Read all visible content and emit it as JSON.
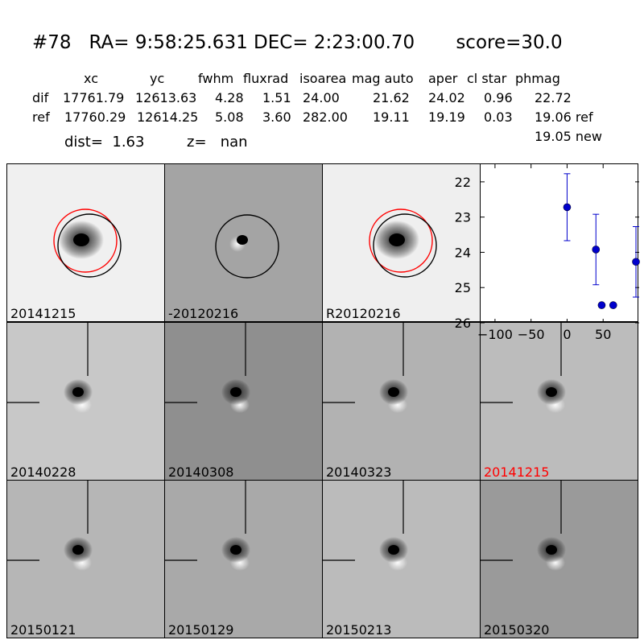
{
  "header": {
    "title": "#78   RA= 9:58:25.631 DEC= 2:23:00.70       score=30.0",
    "columns": [
      "xc",
      "yc",
      "fwhm",
      "fluxrad",
      "isoarea",
      "mag auto",
      "aper",
      "cl star",
      "phmag"
    ],
    "rows": [
      {
        "name": "dif",
        "values": [
          "17761.79",
          "12613.63",
          "4.28",
          "1.51",
          "24.00",
          "21.62",
          "24.02",
          "0.96",
          "22.72"
        ]
      },
      {
        "name": "ref",
        "values": [
          "17760.29",
          "12614.25",
          "5.08",
          "3.60",
          "282.00",
          "19.11",
          "19.19",
          "0.03",
          "19.06 ref"
        ]
      }
    ],
    "new_mag": "19.05 new",
    "dist": "dist=  1.63",
    "z": "z=   nan"
  },
  "tiles": [
    {
      "label": "20141215",
      "label_color": "#000000",
      "bg": "#f0f0f0",
      "style": "new"
    },
    {
      "label": "-20120216",
      "label_color": "#000000",
      "bg": "#a4a4a4",
      "style": "diff"
    },
    {
      "label": "R20120216",
      "label_color": "#000000",
      "bg": "#efefef",
      "style": "ref"
    },
    {
      "label": "20140228",
      "label_color": "#000000",
      "bg": "#c8c8c8",
      "style": "stamp"
    },
    {
      "label": "20140308",
      "label_color": "#000000",
      "bg": "#8f8f8f",
      "style": "stamp"
    },
    {
      "label": "20140323",
      "label_color": "#000000",
      "bg": "#b2b2b2",
      "style": "stamp"
    },
    {
      "label": "20141215",
      "label_color": "#ff0000",
      "bg": "#bcbcbc",
      "style": "stamp"
    },
    {
      "label": "20150121",
      "label_color": "#000000",
      "bg": "#b6b6b6",
      "style": "stamp"
    },
    {
      "label": "20150129",
      "label_color": "#000000",
      "bg": "#a9a9a9",
      "style": "stamp"
    },
    {
      "label": "20150213",
      "label_color": "#000000",
      "bg": "#bbbbbb",
      "style": "stamp"
    },
    {
      "label": "20150320",
      "label_color": "#000000",
      "bg": "#9a9a9a",
      "style": "stamp"
    }
  ],
  "chart_data": {
    "type": "scatter",
    "xlim": [
      -120,
      100
    ],
    "ylim": [
      26,
      21.5
    ],
    "y_inverted": true,
    "xticks": [
      -100,
      -50,
      0,
      50
    ],
    "yticks": [
      22,
      23,
      24,
      25,
      26
    ],
    "color": "#0000cc",
    "points": [
      {
        "x": 0,
        "y": 22.72,
        "err": 0.95
      },
      {
        "x": 40,
        "y": 23.92,
        "err": 1.0
      },
      {
        "x": 48,
        "y": 25.5,
        "err": 0
      },
      {
        "x": 64,
        "y": 25.5,
        "err": 0
      },
      {
        "x": 100,
        "y": 24.27,
        "err": 1.0
      }
    ]
  }
}
